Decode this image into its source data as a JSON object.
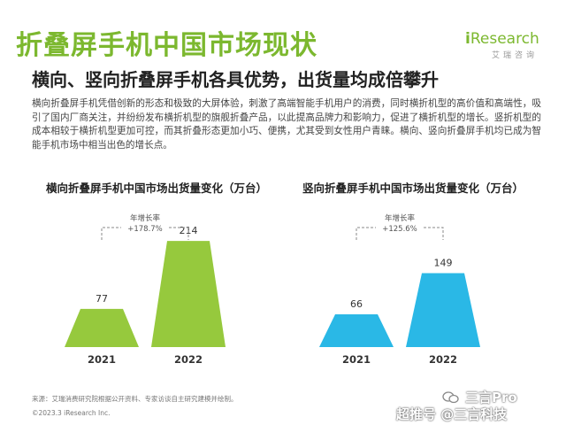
{
  "page": {
    "title": "折叠屏手机中国市场现状",
    "subtitle": "横向、竖向折叠屏手机各具优势，出货量均成倍攀升",
    "body": "横向折叠屏手机凭借创新的形态和极致的大屏体验，刺激了高端智能手机用户的消费，同时横折机型的高价值和高端性，吸引了国内厂商关注，并纷纷发布横折机型的旗舰折叠产品，以此提高品牌力和影响力，促进了横折机型的增长。竖折机型的成本相较于横折机型更加可控，而其折叠形态更加小巧、便携，尤其受到女性用户青睐。横向、竖向折叠屏手机均已成为智能手机市场中相当出色的增长点。",
    "source": "来源：艾瑞消费研究院根据公开资料、专家访谈自主研究建模并绘制。",
    "copyright": "©2023.3 iResearch Inc."
  },
  "logo": {
    "text_i": "i",
    "text_main": "Research",
    "sub": "艾瑞咨询"
  },
  "watermark": {
    "line1": "三言Pro",
    "line2": "超推号 @三言科技"
  },
  "colors": {
    "brand": "#7cb82f",
    "bar_left": "#96c93d",
    "bar_right": "#2ab8e6"
  },
  "chart_data": [
    {
      "type": "bar",
      "title": "横向折叠屏手机中国市场出货量变化（万台）",
      "categories": [
        "2021",
        "2022"
      ],
      "values": [
        77,
        214
      ],
      "growth_label": "年增长率",
      "growth_value": "+178.7%",
      "color": "#96c93d"
    },
    {
      "type": "bar",
      "title": "竖向折叠屏手机中国市场出货量变化（万台）",
      "categories": [
        "2021",
        "2022"
      ],
      "values": [
        66,
        149
      ],
      "growth_label": "年增长率",
      "growth_value": "+125.6%",
      "color": "#2ab8e6"
    }
  ]
}
